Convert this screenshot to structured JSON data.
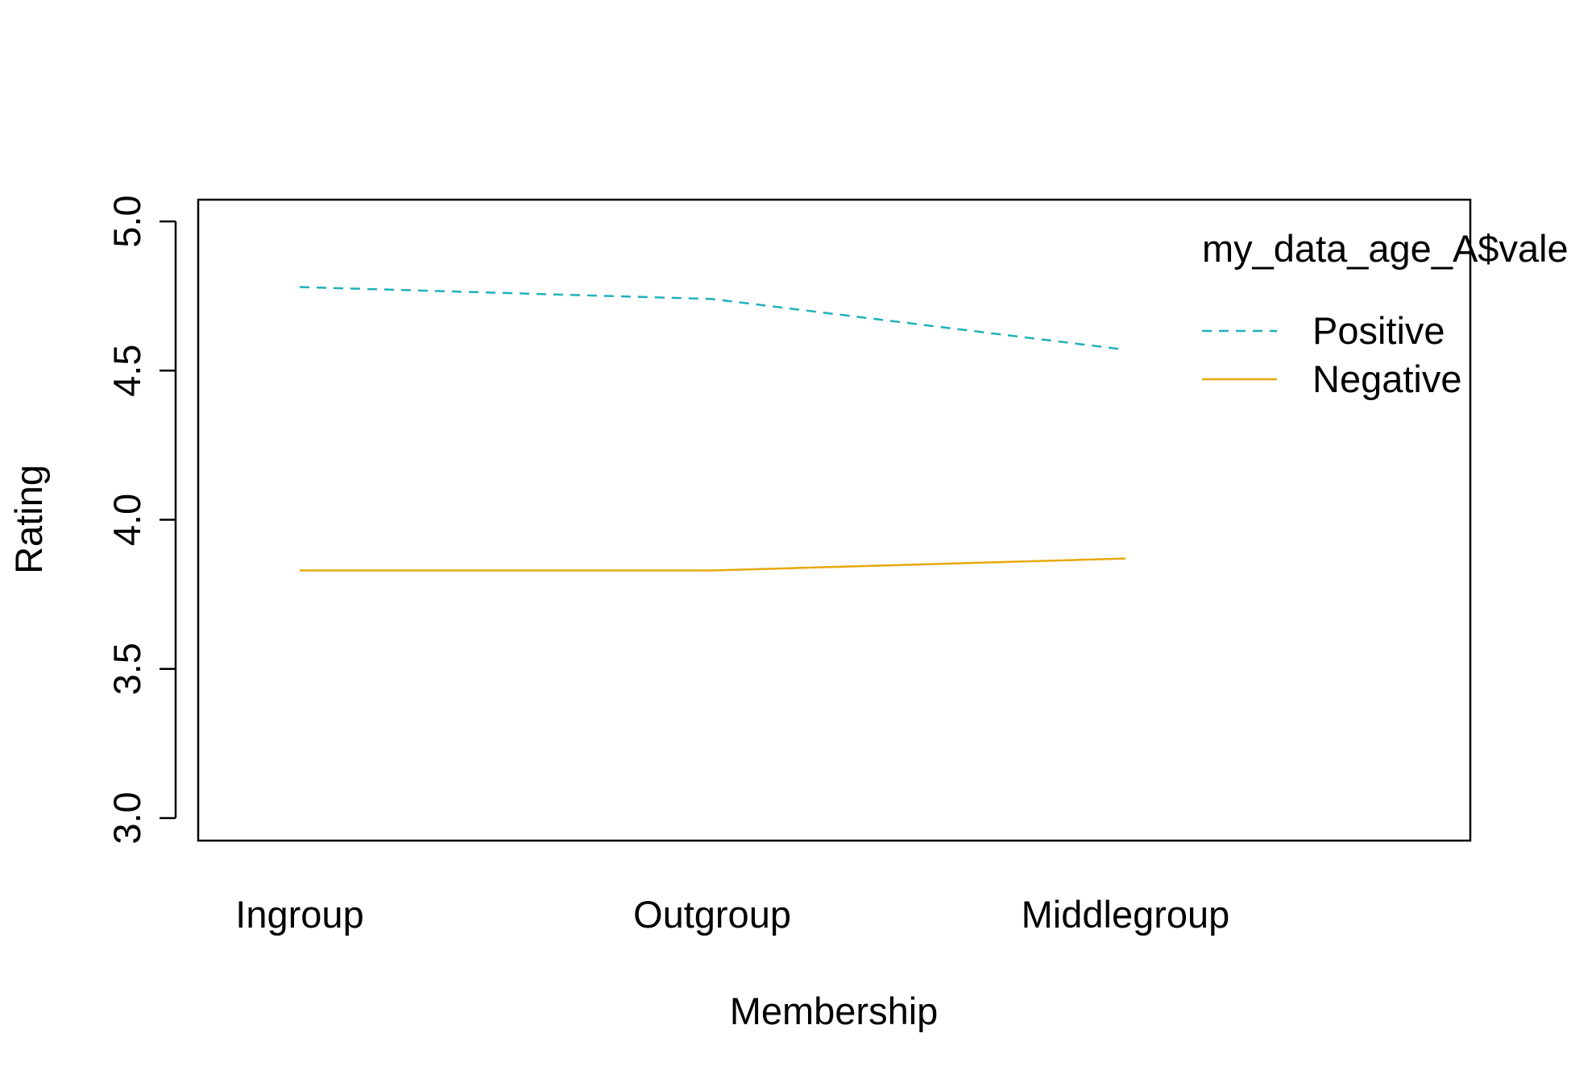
{
  "chart_data": {
    "type": "line",
    "title": "",
    "xlabel": "Membership",
    "ylabel": "Rating",
    "categories": [
      "Ingroup",
      "Outgroup",
      "Middlegroup"
    ],
    "ylim": [
      3.0,
      5.0
    ],
    "yticks": [
      "3.0",
      "3.5",
      "4.0",
      "4.5",
      "5.0"
    ],
    "grid": false,
    "legend": {
      "title": "my_data_age_A$vale",
      "placement": "top-right",
      "entries": [
        "Positive",
        "Negative"
      ]
    },
    "series": [
      {
        "name": "Positive",
        "values": [
          4.78,
          4.74,
          4.57
        ],
        "color": "#1fb1b8",
        "line_style": "dashed"
      },
      {
        "name": "Negative",
        "values": [
          3.83,
          3.83,
          3.87
        ],
        "color": "#e6a80a",
        "line_style": "solid"
      }
    ]
  }
}
